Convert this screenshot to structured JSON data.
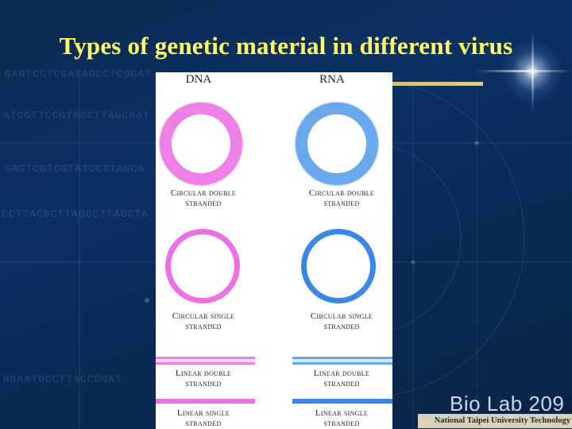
{
  "slide": {
    "title": "Types of genetic material in different virus",
    "background_sequences": [
      "GAGTCGTCGATAGCCTCGGAT",
      "ATCGTTCCGTAGCTTAGCAAT",
      "GAGTCGTCGTATCCTTAGCA",
      "CCTTACGCTTAGCCTTAGCTA",
      "GGAATGCCTTAGCGGAT"
    ],
    "colors": {
      "title": "#ffff66",
      "dna_double": "#ee7fe6",
      "dna_single": "#ec6fe6",
      "rna_double": "#6aa8ee",
      "rna_single": "#3b87e6"
    }
  },
  "figure": {
    "columns": {
      "dna": "DNA",
      "rna": "RNA"
    },
    "dna": {
      "circular_double": [
        "Circular double",
        "stranded"
      ],
      "circular_single": [
        "Circular single",
        "stranded"
      ],
      "linear_double": [
        "Linear double",
        "stranded"
      ],
      "linear_single": [
        "Linear single",
        "stranded"
      ]
    },
    "rna": {
      "circular_double": [
        "Circular double",
        "stranded"
      ],
      "circular_single": [
        "Circular single",
        "stranded"
      ],
      "linear_double": [
        "Linear double",
        "stranded"
      ],
      "linear_single": [
        "Linear single",
        "stranded"
      ]
    }
  },
  "footer": {
    "logo_text": "Bio Lab 209",
    "institution": "National Taipei University Technology"
  }
}
